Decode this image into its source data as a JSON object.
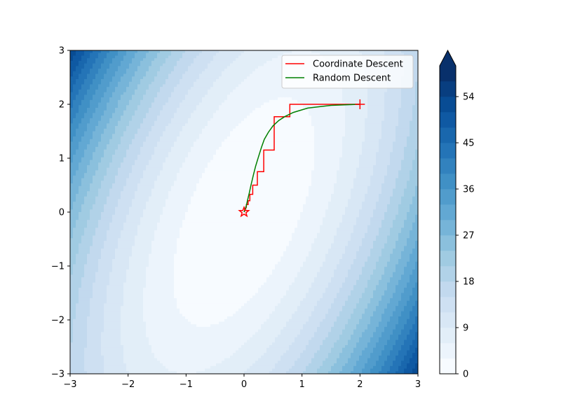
{
  "chart_data": {
    "type": "contour",
    "title": "",
    "xlabel": "",
    "ylabel": "",
    "xlim": [
      -3,
      3
    ],
    "ylim": [
      -3,
      3
    ],
    "x_ticks": [
      "−3",
      "−2",
      "−1",
      "0",
      "1",
      "2",
      "3"
    ],
    "y_ticks": [
      "−3",
      "−2",
      "−1",
      "0",
      "1",
      "2",
      "3"
    ],
    "function": "f(x, y) = 3x^2 - 2xy + y^2",
    "colormap": "Blues",
    "contour_levels": [
      0,
      3,
      6,
      9,
      12,
      15,
      18,
      21,
      24,
      27,
      30,
      33,
      36,
      39,
      42,
      45,
      48,
      51,
      54,
      57,
      60
    ],
    "colorbar": {
      "range": [
        0,
        60
      ],
      "ticks": [
        0,
        9,
        18,
        27,
        36,
        45,
        54
      ],
      "tick_labels": [
        "0",
        "9",
        "18",
        "27",
        "36",
        "45",
        "54"
      ],
      "extend": "max"
    },
    "legend": {
      "position": "top-right"
    },
    "series": [
      {
        "name": "Coordinate Descent",
        "color": "#ff0000",
        "x": [
          2,
          0.79,
          0.79,
          0.52,
          0.52,
          0.34,
          0.34,
          0.23,
          0.23,
          0.15,
          0.15,
          0.1,
          0.1,
          0.07,
          0.07,
          0.04,
          0.04,
          0.03,
          0.03,
          0.02,
          0.02,
          0.01,
          0.01,
          0
        ],
        "y": [
          2,
          2,
          1.77,
          1.77,
          1.15,
          1.15,
          0.75,
          0.75,
          0.5,
          0.5,
          0.33,
          0.33,
          0.21,
          0.21,
          0.14,
          0.14,
          0.09,
          0.09,
          0.06,
          0.06,
          0.04,
          0.04,
          0.02,
          0
        ]
      },
      {
        "name": "Random Descent",
        "color": "#008000",
        "x": [
          2,
          1.5,
          1.1,
          0.85,
          0.7,
          0.6,
          0.5,
          0.42,
          0.35,
          0.3,
          0.25,
          0.2,
          0.16,
          0.12,
          0.09,
          0.06,
          0.04,
          0.02,
          0
        ],
        "y": [
          2,
          1.98,
          1.93,
          1.85,
          1.77,
          1.7,
          1.6,
          1.48,
          1.35,
          1.2,
          1.03,
          0.85,
          0.68,
          0.5,
          0.35,
          0.22,
          0.12,
          0.05,
          0
        ]
      }
    ],
    "markers": [
      {
        "name": "start",
        "shape": "plus",
        "x": 2,
        "y": 2,
        "color": "#ff0000"
      },
      {
        "name": "optimum",
        "shape": "star",
        "x": 0,
        "y": 0,
        "color": "#ff0000"
      }
    ]
  }
}
